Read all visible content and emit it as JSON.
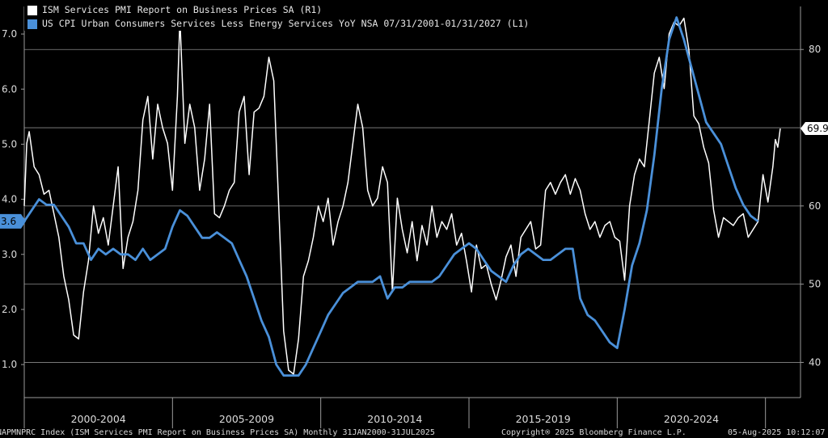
{
  "legend": {
    "items": [
      {
        "label": "ISM Services PMI Report on Business Prices SA  (R1)",
        "color": "#ffffff"
      },
      {
        "label": "US CPI Urban Consumers Services Less Energy Services YoY NSA 07/31/2001-01/31/2027 (L1)",
        "color": "#4a90d9"
      }
    ]
  },
  "footer": {
    "left": "NAPMNPRC Index (ISM Services PMI Report on Business Prices SA) Monthly 31JAN2000-31JUL2025",
    "middle": "Copyright® 2025 Bloomberg Finance L.P.",
    "right": "05-Aug-2025 10:12:07"
  },
  "chart_data": {
    "type": "line",
    "x_range": [
      "2000-01",
      "2025-07"
    ],
    "x_tick_labels": [
      "2000-2004",
      "2005-2009",
      "2010-2014",
      "2015-2019",
      "2020-2024"
    ],
    "y_left": {
      "ticks": [
        1.0,
        2.0,
        3.0,
        4.0,
        5.0,
        6.0,
        7.0
      ],
      "tick_labels": [
        "1.0",
        "2.0",
        "3.0",
        "4.0",
        "5.0",
        "6.0",
        "7.0"
      ],
      "range": [
        0.4,
        7.5
      ]
    },
    "y_right": {
      "ticks": [
        40,
        50,
        60,
        70,
        80
      ],
      "tick_labels": [
        "40",
        "50",
        "60",
        "70",
        "80"
      ],
      "range": [
        35.5,
        85.5
      ]
    },
    "last_value_labels": {
      "left": "3.6",
      "right": "69.9"
    },
    "series": [
      {
        "name": "ISM Services PMI Report on Business Prices SA",
        "axis": "right",
        "color": "#ffffff",
        "points": [
          [
            "2000-01",
            60.0
          ],
          [
            "2000-02",
            68.0
          ],
          [
            "2000-03",
            69.5
          ],
          [
            "2000-05",
            65.0
          ],
          [
            "2000-07",
            64.0
          ],
          [
            "2000-09",
            61.5
          ],
          [
            "2000-11",
            62.0
          ],
          [
            "2001-01",
            59.0
          ],
          [
            "2001-03",
            56.0
          ],
          [
            "2001-05",
            51.0
          ],
          [
            "2001-07",
            48.0
          ],
          [
            "2001-09",
            43.5
          ],
          [
            "2001-11",
            43.0
          ],
          [
            "2002-01",
            49.0
          ],
          [
            "2002-03",
            53.0
          ],
          [
            "2002-05",
            60.0
          ],
          [
            "2002-07",
            56.5
          ],
          [
            "2002-09",
            58.5
          ],
          [
            "2002-11",
            55.0
          ],
          [
            "2003-01",
            60.0
          ],
          [
            "2003-03",
            65.0
          ],
          [
            "2003-05",
            52.0
          ],
          [
            "2003-07",
            56.0
          ],
          [
            "2003-09",
            58.0
          ],
          [
            "2003-11",
            62.0
          ],
          [
            "2004-01",
            71.0
          ],
          [
            "2004-03",
            74.0
          ],
          [
            "2004-05",
            66.0
          ],
          [
            "2004-07",
            73.0
          ],
          [
            "2004-09",
            70.0
          ],
          [
            "2004-11",
            68.0
          ],
          [
            "2005-01",
            62.0
          ],
          [
            "2005-03",
            74.0
          ],
          [
            "2005-04",
            84.0
          ],
          [
            "2005-06",
            68.0
          ],
          [
            "2005-08",
            73.0
          ],
          [
            "2005-10",
            70.0
          ],
          [
            "2005-12",
            62.0
          ],
          [
            "2006-02",
            66.0
          ],
          [
            "2006-04",
            73.0
          ],
          [
            "2006-06",
            59.0
          ],
          [
            "2006-08",
            58.5
          ],
          [
            "2006-10",
            60.0
          ],
          [
            "2006-12",
            62.0
          ],
          [
            "2007-02",
            63.0
          ],
          [
            "2007-04",
            72.0
          ],
          [
            "2007-06",
            74.0
          ],
          [
            "2007-08",
            64.0
          ],
          [
            "2007-10",
            72.0
          ],
          [
            "2007-12",
            72.5
          ],
          [
            "2008-02",
            74.0
          ],
          [
            "2008-04",
            79.0
          ],
          [
            "2008-06",
            76.0
          ],
          [
            "2008-08",
            60.0
          ],
          [
            "2008-10",
            44.0
          ],
          [
            "2008-12",
            39.0
          ],
          [
            "2009-02",
            38.5
          ],
          [
            "2009-04",
            43.0
          ],
          [
            "2009-06",
            51.0
          ],
          [
            "2009-08",
            53.0
          ],
          [
            "2009-10",
            56.0
          ],
          [
            "2009-12",
            60.0
          ],
          [
            "2010-02",
            58.0
          ],
          [
            "2010-04",
            61.0
          ],
          [
            "2010-06",
            55.0
          ],
          [
            "2010-08",
            58.0
          ],
          [
            "2010-10",
            60.0
          ],
          [
            "2010-12",
            63.0
          ],
          [
            "2011-02",
            68.0
          ],
          [
            "2011-04",
            73.0
          ],
          [
            "2011-06",
            70.0
          ],
          [
            "2011-08",
            62.0
          ],
          [
            "2011-10",
            60.0
          ],
          [
            "2011-12",
            61.0
          ],
          [
            "2012-02",
            65.0
          ],
          [
            "2012-04",
            63.0
          ],
          [
            "2012-06",
            49.0
          ],
          [
            "2012-08",
            61.0
          ],
          [
            "2012-10",
            57.0
          ],
          [
            "2012-12",
            54.0
          ],
          [
            "2013-02",
            58.0
          ],
          [
            "2013-04",
            53.0
          ],
          [
            "2013-06",
            57.5
          ],
          [
            "2013-08",
            55.0
          ],
          [
            "2013-10",
            60.0
          ],
          [
            "2013-12",
            56.0
          ],
          [
            "2014-02",
            58.0
          ],
          [
            "2014-04",
            57.0
          ],
          [
            "2014-06",
            59.0
          ],
          [
            "2014-08",
            55.0
          ],
          [
            "2014-10",
            56.5
          ],
          [
            "2014-12",
            53.0
          ],
          [
            "2015-02",
            49.0
          ],
          [
            "2015-04",
            55.0
          ],
          [
            "2015-06",
            52.0
          ],
          [
            "2015-08",
            52.5
          ],
          [
            "2015-10",
            50.0
          ],
          [
            "2015-12",
            48.0
          ],
          [
            "2016-02",
            50.5
          ],
          [
            "2016-04",
            53.5
          ],
          [
            "2016-06",
            55.0
          ],
          [
            "2016-08",
            51.0
          ],
          [
            "2016-10",
            56.0
          ],
          [
            "2016-12",
            57.0
          ],
          [
            "2017-02",
            58.0
          ],
          [
            "2017-04",
            54.5
          ],
          [
            "2017-06",
            55.0
          ],
          [
            "2017-08",
            62.0
          ],
          [
            "2017-10",
            63.0
          ],
          [
            "2017-12",
            61.5
          ],
          [
            "2018-02",
            63.0
          ],
          [
            "2018-04",
            64.0
          ],
          [
            "2018-06",
            61.5
          ],
          [
            "2018-08",
            63.5
          ],
          [
            "2018-10",
            62.0
          ],
          [
            "2018-12",
            59.0
          ],
          [
            "2019-02",
            57.0
          ],
          [
            "2019-04",
            58.0
          ],
          [
            "2019-06",
            56.0
          ],
          [
            "2019-08",
            57.5
          ],
          [
            "2019-10",
            58.0
          ],
          [
            "2019-12",
            56.0
          ],
          [
            "2020-02",
            55.5
          ],
          [
            "2020-04",
            50.5
          ],
          [
            "2020-06",
            60.0
          ],
          [
            "2020-08",
            64.0
          ],
          [
            "2020-10",
            66.0
          ],
          [
            "2020-12",
            65.0
          ],
          [
            "2021-02",
            71.0
          ],
          [
            "2021-04",
            77.0
          ],
          [
            "2021-06",
            79.0
          ],
          [
            "2021-08",
            75.0
          ],
          [
            "2021-10",
            82.0
          ],
          [
            "2021-12",
            83.5
          ],
          [
            "2022-02",
            83.0
          ],
          [
            "2022-04",
            84.0
          ],
          [
            "2022-06",
            80.0
          ],
          [
            "2022-08",
            71.5
          ],
          [
            "2022-10",
            70.5
          ],
          [
            "2022-12",
            67.5
          ],
          [
            "2023-02",
            65.5
          ],
          [
            "2023-04",
            59.5
          ],
          [
            "2023-06",
            56.0
          ],
          [
            "2023-08",
            58.5
          ],
          [
            "2023-10",
            58.0
          ],
          [
            "2023-12",
            57.5
          ],
          [
            "2024-02",
            58.5
          ],
          [
            "2024-04",
            59.0
          ],
          [
            "2024-06",
            56.0
          ],
          [
            "2024-08",
            57.0
          ],
          [
            "2024-10",
            58.0
          ],
          [
            "2024-12",
            64.0
          ],
          [
            "2025-02",
            60.5
          ],
          [
            "2025-04",
            65.0
          ],
          [
            "2025-05",
            68.5
          ],
          [
            "2025-06",
            67.5
          ],
          [
            "2025-07",
            69.9
          ]
        ]
      },
      {
        "name": "US CPI Urban Consumers Services Less Energy Services YoY NSA 07/31/2001-01/31/2027",
        "axis": "left",
        "color": "#4a90d9",
        "points": [
          [
            "2000-01",
            3.6
          ],
          [
            "2000-04",
            3.8
          ],
          [
            "2000-07",
            4.0
          ],
          [
            "2000-10",
            3.9
          ],
          [
            "2001-01",
            3.9
          ],
          [
            "2001-04",
            3.7
          ],
          [
            "2001-07",
            3.5
          ],
          [
            "2001-10",
            3.2
          ],
          [
            "2002-01",
            3.2
          ],
          [
            "2002-04",
            2.9
          ],
          [
            "2002-07",
            3.1
          ],
          [
            "2002-10",
            3.0
          ],
          [
            "2003-01",
            3.1
          ],
          [
            "2003-04",
            3.0
          ],
          [
            "2003-07",
            3.0
          ],
          [
            "2003-10",
            2.9
          ],
          [
            "2004-01",
            3.1
          ],
          [
            "2004-04",
            2.9
          ],
          [
            "2004-07",
            3.0
          ],
          [
            "2004-10",
            3.1
          ],
          [
            "2005-01",
            3.5
          ],
          [
            "2005-04",
            3.8
          ],
          [
            "2005-07",
            3.7
          ],
          [
            "2005-10",
            3.5
          ],
          [
            "2006-01",
            3.3
          ],
          [
            "2006-04",
            3.3
          ],
          [
            "2006-07",
            3.4
          ],
          [
            "2006-10",
            3.3
          ],
          [
            "2007-01",
            3.2
          ],
          [
            "2007-04",
            2.9
          ],
          [
            "2007-07",
            2.6
          ],
          [
            "2007-10",
            2.2
          ],
          [
            "2008-01",
            1.8
          ],
          [
            "2008-04",
            1.5
          ],
          [
            "2008-07",
            1.0
          ],
          [
            "2008-10",
            0.8
          ],
          [
            "2009-01",
            0.8
          ],
          [
            "2009-04",
            0.8
          ],
          [
            "2009-07",
            1.0
          ],
          [
            "2009-10",
            1.3
          ],
          [
            "2010-01",
            1.6
          ],
          [
            "2010-04",
            1.9
          ],
          [
            "2010-07",
            2.1
          ],
          [
            "2010-10",
            2.3
          ],
          [
            "2011-01",
            2.4
          ],
          [
            "2011-04",
            2.5
          ],
          [
            "2011-07",
            2.5
          ],
          [
            "2011-10",
            2.5
          ],
          [
            "2012-01",
            2.6
          ],
          [
            "2012-04",
            2.2
          ],
          [
            "2012-07",
            2.4
          ],
          [
            "2012-10",
            2.4
          ],
          [
            "2013-01",
            2.5
          ],
          [
            "2013-04",
            2.5
          ],
          [
            "2013-07",
            2.5
          ],
          [
            "2013-10",
            2.5
          ],
          [
            "2014-01",
            2.6
          ],
          [
            "2014-04",
            2.8
          ],
          [
            "2014-07",
            3.0
          ],
          [
            "2014-10",
            3.1
          ],
          [
            "2015-01",
            3.2
          ],
          [
            "2015-04",
            3.1
          ],
          [
            "2015-07",
            2.9
          ],
          [
            "2015-10",
            2.7
          ],
          [
            "2016-01",
            2.6
          ],
          [
            "2016-04",
            2.5
          ],
          [
            "2016-07",
            2.8
          ],
          [
            "2016-10",
            3.0
          ],
          [
            "2017-01",
            3.1
          ],
          [
            "2017-04",
            3.0
          ],
          [
            "2017-07",
            2.9
          ],
          [
            "2017-10",
            2.9
          ],
          [
            "2018-01",
            3.0
          ],
          [
            "2018-04",
            3.1
          ],
          [
            "2018-07",
            3.1
          ],
          [
            "2018-10",
            2.2
          ],
          [
            "2019-01",
            1.9
          ],
          [
            "2019-04",
            1.8
          ],
          [
            "2019-07",
            1.6
          ],
          [
            "2019-10",
            1.4
          ],
          [
            "2020-01",
            1.3
          ],
          [
            "2020-04",
            2.0
          ],
          [
            "2020-07",
            2.8
          ],
          [
            "2020-10",
            3.2
          ],
          [
            "2021-01",
            3.8
          ],
          [
            "2021-04",
            4.8
          ],
          [
            "2021-07",
            6.0
          ],
          [
            "2021-10",
            6.9
          ],
          [
            "2022-01",
            7.3
          ],
          [
            "2022-04",
            6.9
          ],
          [
            "2022-07",
            6.4
          ],
          [
            "2022-10",
            5.9
          ],
          [
            "2023-01",
            5.4
          ],
          [
            "2023-04",
            5.2
          ],
          [
            "2023-07",
            5.0
          ],
          [
            "2023-10",
            4.6
          ],
          [
            "2024-01",
            4.2
          ],
          [
            "2024-04",
            3.9
          ],
          [
            "2024-07",
            3.7
          ],
          [
            "2024-10",
            3.6
          ]
        ]
      }
    ]
  }
}
